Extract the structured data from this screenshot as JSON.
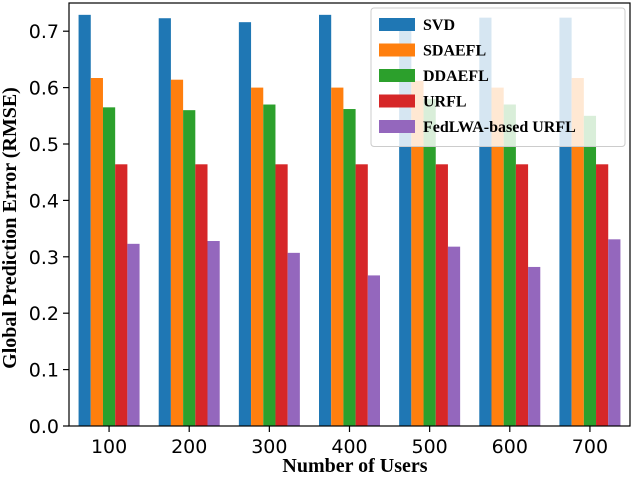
{
  "chart_data": {
    "type": "bar",
    "title": "",
    "xlabel": "Number of Users",
    "ylabel": "Global Prediction Error (RMSE)",
    "categories": [
      "100",
      "200",
      "300",
      "400",
      "500",
      "600",
      "700"
    ],
    "ylim": [
      0,
      0.75
    ],
    "yticks": [
      "0.0",
      "0.1",
      "0.2",
      "0.3",
      "0.4",
      "0.5",
      "0.6",
      "0.7"
    ],
    "grid": false,
    "legend_position": "top-right",
    "series": [
      {
        "name": "SVD",
        "color": "#1f77b4",
        "values": [
          0.729,
          0.723,
          0.716,
          0.729,
          0.72,
          0.724,
          0.724
        ]
      },
      {
        "name": "SDAEFL",
        "color": "#ff7f0e",
        "values": [
          0.617,
          0.614,
          0.6,
          0.6,
          0.612,
          0.6,
          0.617
        ]
      },
      {
        "name": "DDAEFL",
        "color": "#2ca02c",
        "values": [
          0.565,
          0.56,
          0.57,
          0.562,
          0.58,
          0.57,
          0.55
        ]
      },
      {
        "name": "URFL",
        "color": "#d62728",
        "values": [
          0.464,
          0.464,
          0.464,
          0.464,
          0.464,
          0.464,
          0.464
        ]
      },
      {
        "name": "FedLWA-based URFL",
        "color": "#9467bd",
        "values": [
          0.323,
          0.328,
          0.307,
          0.267,
          0.318,
          0.282,
          0.331
        ]
      }
    ]
  }
}
